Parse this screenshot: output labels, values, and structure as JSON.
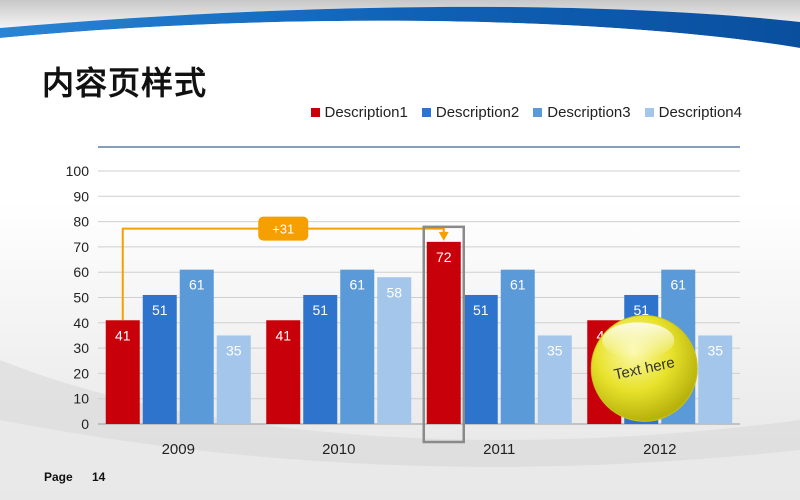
{
  "slide": {
    "title": "内容页样式",
    "page_label": "Page",
    "page_number": "14"
  },
  "colors": {
    "accent_blue": "#1f78c8",
    "series": [
      "#c8000a",
      "#2e74cc",
      "#5b9ad8",
      "#a3c6ea"
    ],
    "annotation_orange": "#f5a000",
    "highlight_gray": "#8a8a8a",
    "bubble_yellow": "#e6e030"
  },
  "annotations": {
    "delta_label": "+31",
    "bubble_text": "Text here"
  },
  "chart_data": {
    "type": "bar",
    "categories": [
      "2009",
      "2010",
      "2011",
      "2012"
    ],
    "series": [
      {
        "name": "Description1",
        "values": [
          41,
          41,
          72,
          41
        ]
      },
      {
        "name": "Description2",
        "values": [
          51,
          51,
          51,
          51
        ]
      },
      {
        "name": "Description3",
        "values": [
          61,
          61,
          61,
          61
        ]
      },
      {
        "name": "Description4",
        "values": [
          35,
          58,
          35,
          35
        ]
      }
    ],
    "ylim": [
      0,
      100
    ],
    "yticks": [
      "0",
      "10",
      "20",
      "30",
      "40",
      "50",
      "60",
      "70",
      "80",
      "90",
      "100"
    ],
    "grid": true,
    "legend_position": "top-right",
    "data_labels": true
  }
}
